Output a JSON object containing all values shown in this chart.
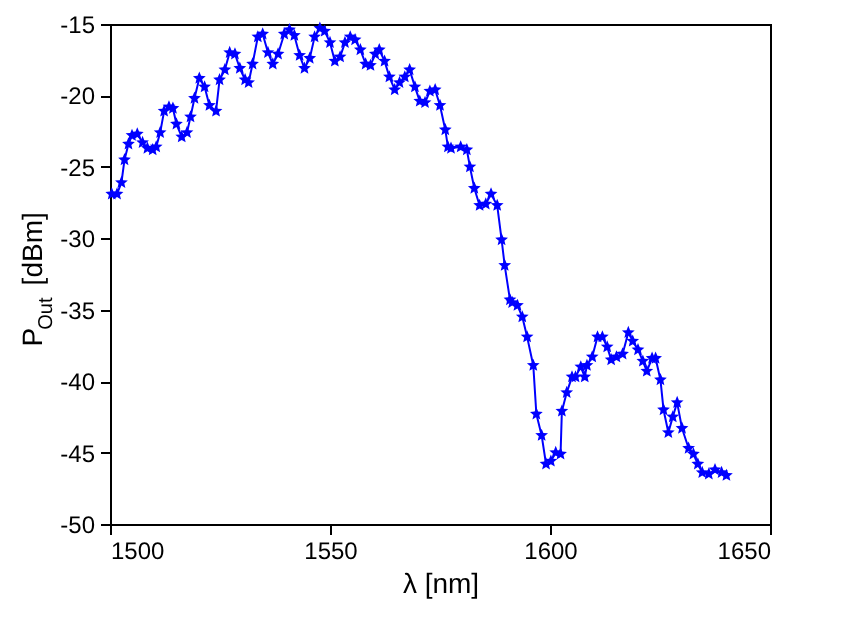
{
  "chart_data": {
    "type": "line",
    "xlabel": "λ [nm]",
    "ylabel": "P$_{Out}$ [dBm]",
    "xlim": [
      1500,
      1650
    ],
    "xticks": [
      1500,
      1550,
      1600,
      1650
    ],
    "ylim": [
      -50,
      -15
    ],
    "yticks": [
      -50,
      -45,
      -40,
      -35,
      -30,
      -25,
      -20,
      -15
    ],
    "grid": false,
    "marker": "star",
    "line_style": "solid",
    "series": [
      {
        "color": "#0000ff",
        "x": [
          1500.4,
          1501.6,
          1502.6,
          1503.3,
          1504.2,
          1505.0,
          1506.2,
          1507.4,
          1508.5,
          1509.7,
          1510.5,
          1511.4,
          1512.3,
          1513.4,
          1514.3,
          1515.1,
          1516.3,
          1517.5,
          1518.3,
          1519.2,
          1520.3,
          1521.5,
          1522.6,
          1524.1,
          1524.9,
          1526.1,
          1527.2,
          1528.4,
          1529.5,
          1530.7,
          1531.5,
          1532.4,
          1533.6,
          1534.7,
          1535.9,
          1537.0,
          1538.2,
          1539.6,
          1540.8,
          1541.9,
          1543.1,
          1544.2,
          1545.4,
          1546.5,
          1547.7,
          1548.8,
          1550.0,
          1551.1,
          1552.3,
          1553.4,
          1554.6,
          1555.7,
          1556.9,
          1558.1,
          1559.2,
          1560.3,
          1561.2,
          1562.4,
          1563.5,
          1564.7,
          1565.8,
          1567.0,
          1568.1,
          1569.3,
          1570.4,
          1571.6,
          1572.7,
          1573.9,
          1575.0,
          1576.2,
          1576.8,
          1577.5,
          1579.7,
          1581.1,
          1581.8,
          1582.8,
          1584.0,
          1585.4,
          1586.6,
          1588.0,
          1589.0,
          1589.7,
          1590.9,
          1591.4,
          1592.6,
          1593.7,
          1594.8,
          1596.2,
          1596.9,
          1598.1,
          1599.1,
          1600.2,
          1601.3,
          1602.4,
          1602.7,
          1603.8,
          1605.0,
          1605.8,
          1607.0,
          1607.9,
          1608.4,
          1609.6,
          1610.8,
          1611.9,
          1613.0,
          1613.9,
          1615.1,
          1616.5,
          1617.8,
          1618.8,
          1620.0,
          1621.1,
          1622.0,
          1623.2,
          1624.0,
          1625.1,
          1625.8,
          1626.9,
          1627.9,
          1628.9,
          1630.0,
          1631.5,
          1632.6,
          1633.6,
          1634.6,
          1636.1,
          1637.5,
          1639.0,
          1640.1
        ],
        "values": [
          -26.9,
          -26.9,
          -26.1,
          -24.5,
          -23.4,
          -22.8,
          -22.7,
          -23.3,
          -23.7,
          -23.8,
          -23.6,
          -22.6,
          -21.1,
          -20.8,
          -20.9,
          -22.0,
          -22.9,
          -22.6,
          -21.5,
          -20.2,
          -18.8,
          -19.4,
          -20.7,
          -21.1,
          -18.9,
          -18.2,
          -17.0,
          -17.1,
          -18.1,
          -18.9,
          -19.1,
          -17.8,
          -15.9,
          -15.7,
          -17.0,
          -17.8,
          -17.1,
          -15.7,
          -15.4,
          -15.8,
          -17.2,
          -18.1,
          -17.4,
          -15.9,
          -15.3,
          -15.5,
          -16.3,
          -17.6,
          -17.3,
          -16.3,
          -15.9,
          -16.1,
          -16.8,
          -17.8,
          -17.9,
          -17.1,
          -16.8,
          -17.6,
          -18.7,
          -19.6,
          -19.1,
          -18.7,
          -18.2,
          -19.4,
          -20.4,
          -20.5,
          -19.7,
          -19.6,
          -20.7,
          -22.4,
          -23.6,
          -23.7,
          -23.6,
          -23.8,
          -25.0,
          -26.5,
          -27.7,
          -27.6,
          -26.9,
          -27.7,
          -30.1,
          -31.9,
          -34.3,
          -34.5,
          -34.7,
          -35.5,
          -36.9,
          -38.9,
          -42.3,
          -43.8,
          -45.8,
          -45.6,
          -45.0,
          -45.1,
          -42.1,
          -40.8,
          -39.7,
          -39.7,
          -39.0,
          -39.7,
          -38.9,
          -38.3,
          -36.9,
          -36.9,
          -37.6,
          -38.5,
          -38.3,
          -38.1,
          -36.6,
          -37.2,
          -37.8,
          -38.6,
          -39.3,
          -38.4,
          -38.4,
          -39.9,
          -42.0,
          -43.6,
          -42.5,
          -41.5,
          -43.3,
          -44.7,
          -45.1,
          -45.8,
          -46.4,
          -46.5,
          -46.2,
          -46.4,
          -46.6
        ]
      }
    ]
  }
}
